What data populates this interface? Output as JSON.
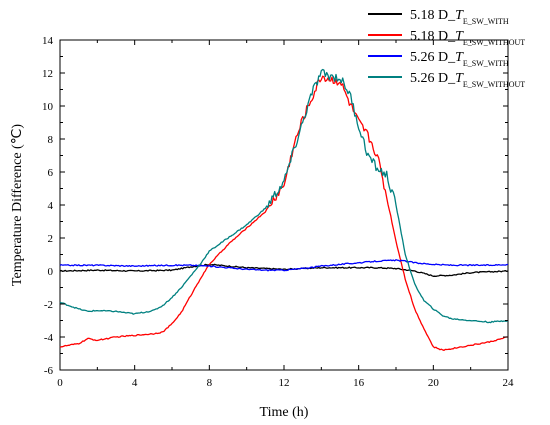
{
  "chart_data": {
    "type": "line",
    "title": "",
    "xlabel": "Time (h)",
    "ylabel": "Temperature Difference (℃)",
    "xlim": [
      0,
      24
    ],
    "ylim": [
      -6,
      14
    ],
    "x_ticks": [
      "0",
      "4",
      "8",
      "12",
      "16",
      "20",
      "24"
    ],
    "y_ticks": [
      "-6",
      "-4",
      "-2",
      "0",
      "2",
      "4",
      "6",
      "8",
      "10",
      "12",
      "14"
    ],
    "grid": false,
    "legend_position": "top-right",
    "series": [
      {
        "name_main": "5.18 D_",
        "name_italic": "T",
        "name_sub": "E_SW_WITH",
        "color": "#000000",
        "x": [
          0,
          2,
          4,
          6,
          7,
          8,
          9,
          10,
          11,
          12,
          13,
          14,
          15,
          16,
          17,
          18,
          19,
          20,
          21,
          22,
          23,
          24
        ],
        "y": [
          0.0,
          0.05,
          0.0,
          0.05,
          0.25,
          0.4,
          0.3,
          0.2,
          0.15,
          0.1,
          0.15,
          0.2,
          0.2,
          0.2,
          0.2,
          0.15,
          0.0,
          -0.3,
          -0.25,
          -0.1,
          -0.05,
          0.0
        ]
      },
      {
        "name_main": "5.18 D_",
        "name_italic": "T",
        "name_sub": "E_SW_WITHOUT",
        "color": "#ff0000",
        "x": [
          0,
          0.5,
          1,
          1.5,
          2,
          3,
          4,
          5,
          5.5,
          6,
          6.5,
          7,
          7.5,
          8,
          9,
          10,
          11,
          12,
          12.5,
          13,
          13.5,
          14,
          14.5,
          15,
          15.5,
          16,
          16.5,
          17,
          17.5,
          18,
          18.5,
          19,
          19.5,
          20,
          20.5,
          21,
          22,
          23,
          24
        ],
        "y": [
          -4.6,
          -4.5,
          -4.4,
          -4.1,
          -4.2,
          -4.0,
          -3.9,
          -3.8,
          -3.7,
          -3.2,
          -2.5,
          -1.5,
          -0.5,
          0.4,
          1.6,
          2.6,
          3.6,
          5.2,
          7.5,
          9.2,
          10.5,
          11.8,
          11.6,
          11.5,
          10.2,
          9.0,
          8.2,
          7.0,
          4.5,
          1.8,
          -0.5,
          -2.3,
          -3.5,
          -4.6,
          -4.8,
          -4.7,
          -4.5,
          -4.3,
          -4.0
        ]
      },
      {
        "name_main": "5.26 D_",
        "name_italic": "T",
        "name_sub": "E_SW_WITH",
        "color": "#0000ff",
        "x": [
          0,
          2,
          4,
          6,
          7,
          8,
          9,
          10,
          11,
          12,
          13,
          14,
          15,
          16,
          17,
          18,
          18.5,
          19,
          20,
          21,
          22,
          23,
          24
        ],
        "y": [
          0.35,
          0.35,
          0.3,
          0.35,
          0.35,
          0.3,
          0.2,
          0.1,
          0.05,
          0.05,
          0.15,
          0.3,
          0.4,
          0.5,
          0.6,
          0.65,
          0.6,
          0.5,
          0.4,
          0.35,
          0.35,
          0.35,
          0.4
        ]
      },
      {
        "name_main": "5.26 D_",
        "name_italic": "T",
        "name_sub": "E_SW_WITHOUT",
        "color": "#008080",
        "x": [
          0,
          0.5,
          1,
          1.5,
          2,
          3,
          4,
          5,
          5.5,
          6,
          6.5,
          7,
          7.5,
          8,
          9,
          10,
          11,
          12,
          12.5,
          13,
          13.5,
          14,
          14.5,
          15,
          15.5,
          16,
          16.5,
          17,
          17.5,
          18,
          18.5,
          19,
          19.5,
          20,
          20.5,
          21,
          22,
          23,
          24
        ],
        "y": [
          -1.9,
          -2.1,
          -2.3,
          -2.45,
          -2.4,
          -2.45,
          -2.6,
          -2.4,
          -2.1,
          -1.6,
          -1.0,
          -0.3,
          0.4,
          1.2,
          2.0,
          2.8,
          3.8,
          5.4,
          7.2,
          9.0,
          10.8,
          12.0,
          11.8,
          11.7,
          10.8,
          8.8,
          7.0,
          6.2,
          5.8,
          4.0,
          1.0,
          -0.8,
          -1.8,
          -2.3,
          -2.7,
          -2.9,
          -3.0,
          -3.1,
          -3.0
        ]
      }
    ]
  }
}
